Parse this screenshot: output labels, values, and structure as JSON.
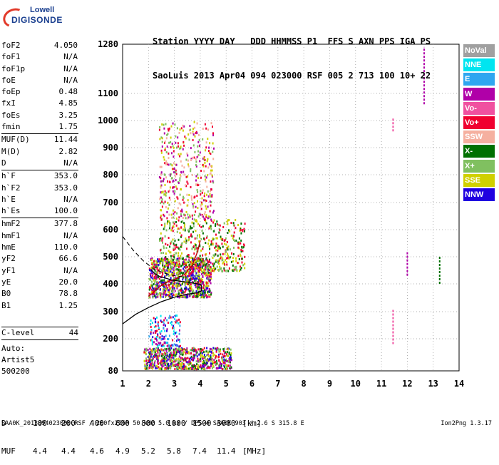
{
  "logo": {
    "top": "Lowell",
    "main": "DIGISONDE"
  },
  "header": {
    "line1": "Station YYYY DAY   DDD HHMMSS P1  FFS S AXN PPS IGA PS",
    "line2": "SaoLuis 2013 Apr04 094 023000 RSF 005 2 713 100 10+ 22"
  },
  "params": [
    {
      "name": "foF2",
      "value": "4.050"
    },
    {
      "name": "foF1",
      "value": "N/A"
    },
    {
      "name": "foF1p",
      "value": "N/A"
    },
    {
      "name": "foE",
      "value": "N/A"
    },
    {
      "name": "foEp",
      "value": "0.48"
    },
    {
      "name": "fxI",
      "value": "4.85"
    },
    {
      "name": "foEs",
      "value": "3.25"
    },
    {
      "name": "fmin",
      "value": "1.75"
    },
    {
      "sep": true
    },
    {
      "name": "MUF(D)",
      "value": "11.44"
    },
    {
      "name": "M(D)",
      "value": "2.82"
    },
    {
      "name": "D",
      "value": "N/A"
    },
    {
      "sep": true
    },
    {
      "name": "h`F",
      "value": "353.0"
    },
    {
      "name": "h`F2",
      "value": "353.0"
    },
    {
      "name": "h`E",
      "value": "N/A"
    },
    {
      "name": "h`Es",
      "value": "100.0"
    },
    {
      "sep": true
    },
    {
      "name": "hmF2",
      "value": "377.8"
    },
    {
      "name": "hmF1",
      "value": "N/A"
    },
    {
      "name": "hmE",
      "value": "110.0"
    },
    {
      "name": "yF2",
      "value": "66.6"
    },
    {
      "name": "yF1",
      "value": "N/A"
    },
    {
      "name": "yE",
      "value": "20.0"
    },
    {
      "name": "B0",
      "value": "78.8"
    },
    {
      "name": "B1",
      "value": "1.25"
    }
  ],
  "clevel": {
    "name": "C-level",
    "value": "44"
  },
  "auto": {
    "line1": "Auto:",
    "line2": "Artist5",
    "line3": "500200"
  },
  "legend": [
    {
      "label": "NoVal",
      "color": "#a0a0a0"
    },
    {
      "label": "NNE",
      "color": "#00e5f0"
    },
    {
      "label": "E",
      "color": "#2ea6f0"
    },
    {
      "label": "W",
      "color": "#b000a8"
    },
    {
      "label": "Vo-",
      "color": "#f050a0"
    },
    {
      "label": "Vo+",
      "color": "#f00030"
    },
    {
      "label": "SSW",
      "color": "#f5b0a0"
    },
    {
      "label": "X-",
      "color": "#007000"
    },
    {
      "label": "X+",
      "color": "#80c060"
    },
    {
      "label": "SSE",
      "color": "#d0d000"
    },
    {
      "label": "NNW",
      "color": "#2000e0"
    }
  ],
  "muf_table": {
    "d_label": "D",
    "muf_label": "MUF",
    "d_values": [
      "100",
      "200",
      "400",
      "600",
      "800",
      "1000",
      "1500",
      "3000",
      "[km]"
    ],
    "muf_values": [
      "4.4",
      "4.4",
      "4.6",
      "4.9",
      "5.2",
      "5.8",
      "7.4",
      "11.4",
      "[MHz]"
    ]
  },
  "footer": {
    "left": "SAA0K_2013094023000.RSF / 260fx256h 50 kHz 5.0 km / DPS-4 SAA0K 903 / 2.6 S 315.8 E",
    "right": "Ion2Png 1.3.17"
  },
  "chart_data": {
    "type": "scatter",
    "x_ticks": [
      1,
      2,
      3,
      4,
      5,
      6,
      7,
      8,
      9,
      10,
      11,
      12,
      13,
      14
    ],
    "y_ticks": [
      80,
      200,
      300,
      400,
      500,
      600,
      700,
      800,
      900,
      1000,
      1100,
      1280
    ],
    "xlim": [
      1,
      14
    ],
    "ylim": [
      80,
      1280
    ],
    "grid": true,
    "legend_position": "right",
    "profile_solid": [
      [
        1,
        255
      ],
      [
        1.5,
        290
      ],
      [
        2,
        315
      ],
      [
        2.5,
        336
      ],
      [
        3,
        352
      ],
      [
        3.5,
        363
      ],
      [
        3.9,
        368
      ],
      [
        4.05,
        375
      ],
      [
        4.05,
        392
      ],
      [
        4,
        398
      ],
      [
        3.6,
        405
      ],
      [
        3.2,
        410
      ],
      [
        2.9,
        414
      ],
      [
        2.7,
        420
      ],
      [
        2.45,
        426
      ],
      [
        2.25,
        438
      ],
      [
        2.1,
        452
      ]
    ],
    "profile_dashed": [
      [
        1,
        575
      ],
      [
        1.4,
        525
      ],
      [
        1.8,
        485
      ],
      [
        2.2,
        455
      ],
      [
        2.6,
        440
      ],
      [
        3.0,
        430
      ],
      [
        3.4,
        425
      ]
    ],
    "trace_red": [
      [
        2.0,
        355
      ],
      [
        2.2,
        370
      ],
      [
        2.5,
        395
      ],
      [
        2.8,
        410
      ],
      [
        3.1,
        420
      ],
      [
        3.4,
        435
      ],
      [
        3.7,
        470
      ],
      [
        3.9,
        520
      ],
      [
        4.0,
        560
      ]
    ],
    "clusters": [
      {
        "x": [
          2.0,
          4.4
        ],
        "y": [
          355,
          500
        ],
        "n": 900,
        "colors": [
          "#d0d000",
          "#80c060",
          "#f00030",
          "#007000",
          "#b000a8",
          "#2000e0"
        ]
      },
      {
        "x": [
          2.4,
          5.7
        ],
        "y": [
          450,
          640
        ],
        "n": 500,
        "colors": [
          "#d0d000",
          "#80c060",
          "#007000",
          "#f00030"
        ]
      },
      {
        "x": [
          2.4,
          4.5
        ],
        "y": [
          640,
          1000
        ],
        "n": 420,
        "colors": [
          "#d0d000",
          "#f5b0a0",
          "#80c060",
          "#f00030",
          "#b000a8"
        ]
      },
      {
        "x": [
          1.8,
          5.2
        ],
        "y": [
          90,
          170
        ],
        "n": 700,
        "colors": [
          "#2000e0",
          "#b000a8",
          "#d0d000",
          "#80c060",
          "#f00030",
          "#007000"
        ]
      },
      {
        "x": [
          2.0,
          3.2
        ],
        "y": [
          175,
          290
        ],
        "n": 140,
        "colors": [
          "#b000a8",
          "#2000e0",
          "#2ea6f0",
          "#00e5f0",
          "#f00030"
        ]
      }
    ],
    "lines": [
      {
        "x": 11.45,
        "y": [
          180,
          310
        ],
        "color": "#f050a0"
      },
      {
        "x": 11.45,
        "y": [
          960,
          1010
        ],
        "color": "#f050a0"
      },
      {
        "x": 12.65,
        "y": [
          1060,
          1270
        ],
        "color": "#b000a8"
      },
      {
        "x": 12.0,
        "y": [
          430,
          520
        ],
        "color": "#b000a8"
      },
      {
        "x": 13.25,
        "y": [
          400,
          500
        ],
        "color": "#007000"
      }
    ]
  }
}
